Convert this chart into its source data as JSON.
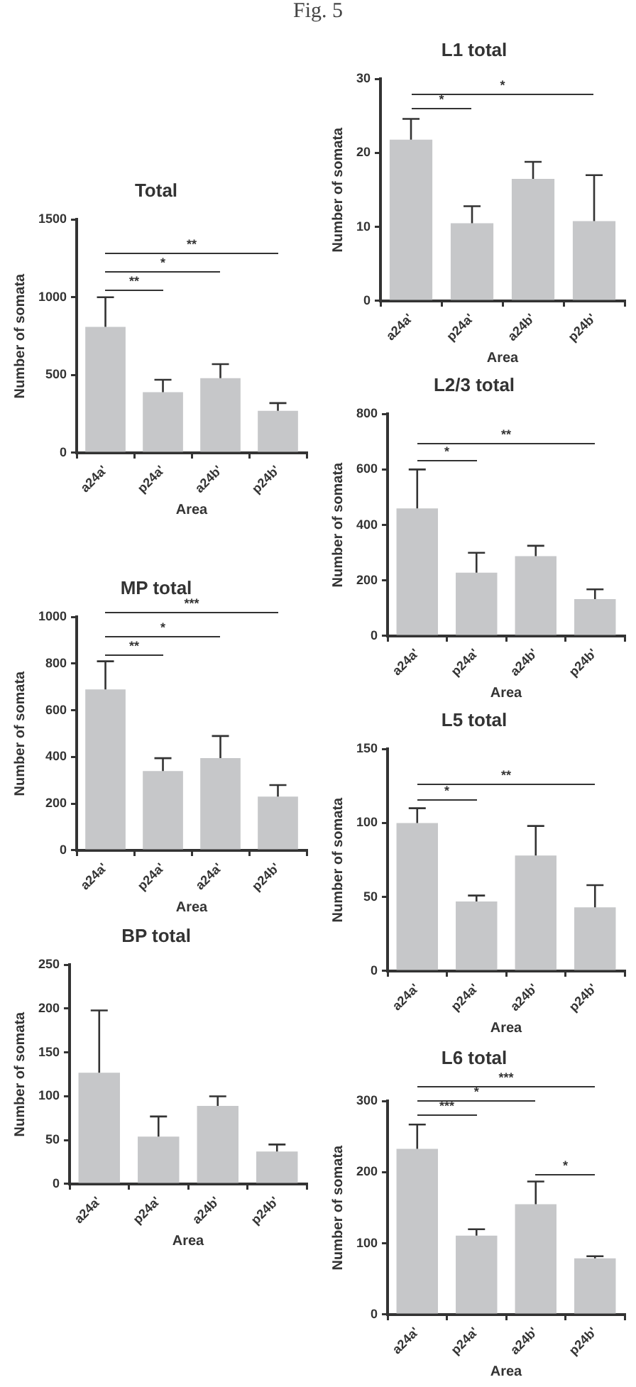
{
  "chart_data": [
    {
      "type": "other",
      "title": "Fig. 5"
    },
    {
      "type": "bar",
      "title": "L1 total",
      "xlabel": "Area",
      "ylabel": "Number of somata",
      "categories": [
        "a24a'",
        "p24a'",
        "a24b'",
        "p24b'"
      ],
      "values": [
        21.8,
        10.5,
        16.5,
        10.8
      ],
      "errors": [
        [
          21.8,
          24.6
        ],
        [
          10.5,
          12.8
        ],
        [
          16.5,
          18.8
        ],
        [
          10.8,
          17
        ]
      ],
      "color": "#c6c7c9",
      "ylim": [
        0,
        30
      ],
      "yticks": [
        0,
        10,
        20,
        30
      ],
      "annotations": [
        "*",
        "*"
      ]
    },
    {
      "type": "bar",
      "title": "Total",
      "xlabel": "Area",
      "ylabel": "Number of somata",
      "categories": [
        "a24a'",
        "p24a'",
        "a24b'",
        "p24b'"
      ],
      "values": [
        810,
        390,
        480,
        270
      ],
      "errors": [
        [
          810,
          1000
        ],
        [
          390,
          470
        ],
        [
          480,
          570
        ],
        [
          270,
          320
        ]
      ],
      "color": "#c6c7c9",
      "ylim": [
        0,
        1500
      ],
      "yticks": [
        0,
        500,
        1000,
        1500
      ],
      "annotations": [
        "**",
        "*",
        "**"
      ]
    },
    {
      "type": "bar",
      "title": "L2/3 total",
      "xlabel": "Area",
      "ylabel": "Number of somata",
      "categories": [
        "a24a'",
        "p24a'",
        "a24b'",
        "p24b'"
      ],
      "values": [
        460,
        228,
        288,
        133
      ],
      "errors": [
        [
          460,
          600
        ],
        [
          228,
          300
        ],
        [
          288,
          325
        ],
        [
          133,
          168
        ]
      ],
      "color": "#c6c7c9",
      "ylim": [
        0,
        800
      ],
      "yticks": [
        0,
        200,
        400,
        600,
        800
      ],
      "annotations": [
        "**",
        "*"
      ]
    },
    {
      "type": "bar",
      "title": "MP total",
      "xlabel": "Area",
      "ylabel": "Number of somata",
      "categories": [
        "a24a'",
        "p24a'",
        "a24a'",
        "p24b'"
      ],
      "values": [
        690,
        340,
        395,
        230
      ],
      "errors": [
        [
          690,
          810
        ],
        [
          340,
          395
        ],
        [
          395,
          490
        ],
        [
          230,
          280
        ]
      ],
      "color": "#c6c7c9",
      "ylim": [
        0,
        1000
      ],
      "yticks": [
        0,
        200,
        400,
        600,
        800,
        1000
      ],
      "annotations": [
        "***",
        "*",
        "**"
      ]
    },
    {
      "type": "bar",
      "title": "L5 total",
      "xlabel": "Area",
      "ylabel": "Number of somata",
      "categories": [
        "a24a'",
        "p24a'",
        "a24b'",
        "p24b'"
      ],
      "values": [
        100,
        47,
        78,
        43
      ],
      "errors": [
        [
          100,
          110
        ],
        [
          47,
          51
        ],
        [
          78,
          98
        ],
        [
          43,
          58
        ]
      ],
      "color": "#c6c7c9",
      "ylim": [
        0,
        150
      ],
      "yticks": [
        0,
        50,
        100,
        150
      ],
      "annotations": [
        "**",
        "*"
      ]
    },
    {
      "type": "bar",
      "title": "BP total",
      "xlabel": "Area",
      "ylabel": "Number of somata",
      "categories": [
        "a24a'",
        "p24a'",
        "a24b'",
        "p24b'"
      ],
      "values": [
        127,
        54,
        89,
        37
      ],
      "errors": [
        [
          127,
          198
        ],
        [
          54,
          77
        ],
        [
          89,
          100
        ],
        [
          37,
          45
        ]
      ],
      "color": "#c6c7c9",
      "ylim": [
        0,
        250
      ],
      "yticks": [
        0,
        50,
        100,
        150,
        200,
        250
      ]
    },
    {
      "type": "bar",
      "title": "L6 total",
      "xlabel": "Area",
      "ylabel": "Number of somata",
      "categories": [
        "a24a'",
        "p24a'",
        "a24b'",
        "p24b'"
      ],
      "values": [
        233,
        111,
        155,
        79
      ],
      "errors": [
        [
          233,
          267
        ],
        [
          111,
          120
        ],
        [
          155,
          187
        ],
        [
          79,
          82
        ]
      ],
      "color": "#c6c7c9",
      "ylim": [
        0,
        300
      ],
      "yticks": [
        0,
        100,
        200,
        300
      ],
      "annotations": [
        "***",
        "*",
        "***",
        "*"
      ]
    }
  ]
}
